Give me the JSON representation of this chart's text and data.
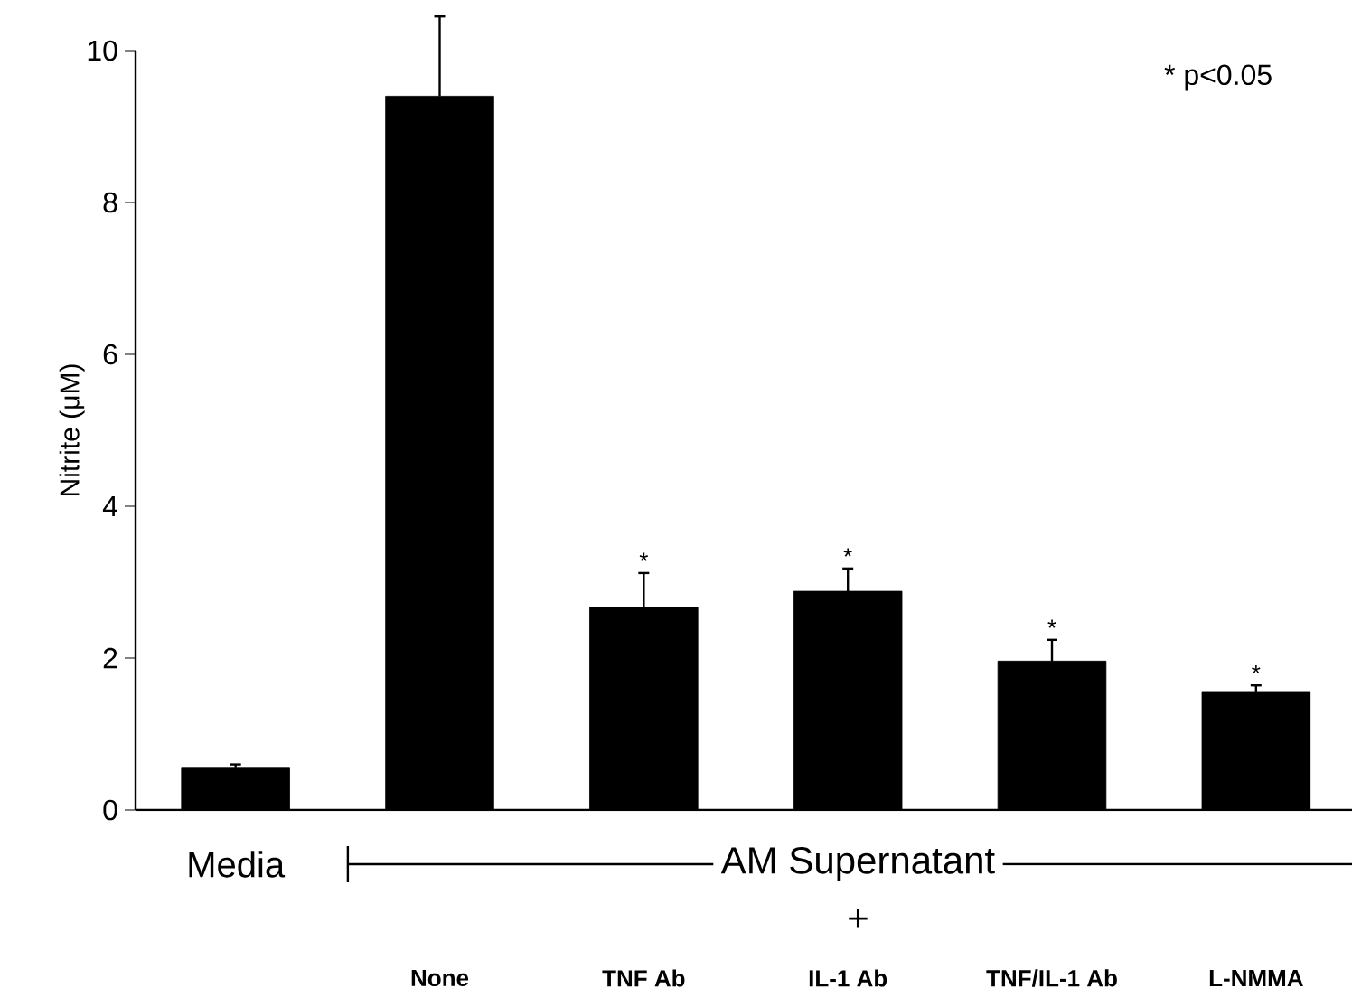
{
  "chart_data": {
    "type": "bar",
    "categories": [
      "Media",
      "None",
      "TNF Ab",
      "IL-1 Ab",
      "TNF/IL-1 Ab",
      "L-NMMA"
    ],
    "values": [
      0.55,
      9.4,
      2.67,
      2.88,
      1.96,
      1.56
    ],
    "errors": [
      0.05,
      1.05,
      0.45,
      0.3,
      0.28,
      0.08
    ],
    "color": "#000000",
    "ylabel": "Nitrite (μM)",
    "ylim": [
      0,
      10
    ],
    "yticks": [
      0,
      2,
      4,
      6,
      8,
      10
    ],
    "grid": false,
    "annotations": [
      "* p<0.05",
      "AM Supernatant",
      "+",
      {
        "text": "*",
        "x": "TNF Ab",
        "y": 3.12
      },
      {
        "text": "*",
        "x": "IL-1 Ab",
        "y": 3.18
      },
      {
        "text": "*",
        "x": "TNF/IL-1 Ab",
        "y": 2.24
      },
      {
        "text": "*",
        "x": "L-NMMA",
        "y": 1.64
      }
    ]
  }
}
